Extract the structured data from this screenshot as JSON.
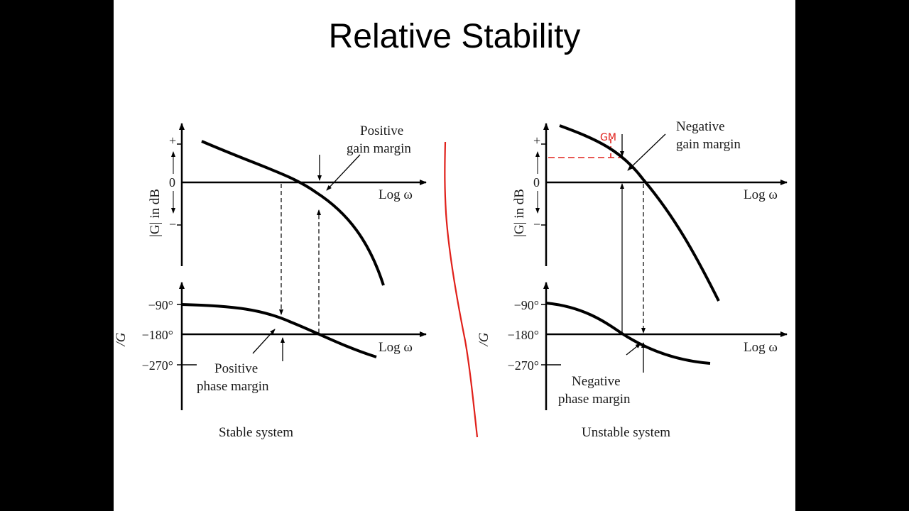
{
  "slide": {
    "title": "Relative Stability",
    "axis_labels": {
      "magnitude": "|G| in dB",
      "phase": "/G",
      "log_omega": "Log ω",
      "plus": "+",
      "zero": "0",
      "minus": "−",
      "deg_m90": "−90°",
      "deg_m180": "−180°",
      "deg_m270": "−270°"
    },
    "stable": {
      "caption": "Stable system",
      "gain_margin_line1": "Positive",
      "gain_margin_line2": "gain margin",
      "phase_margin_line1": "Positive",
      "phase_margin_line2": "phase margin"
    },
    "unstable": {
      "caption": "Unstable system",
      "gain_margin_line1": "Negative",
      "gain_margin_line2": "gain margin",
      "phase_margin_line1": "Negative",
      "phase_margin_line2": "phase margin",
      "handwritten_note": "GM"
    },
    "colors": {
      "background": "#000000",
      "slide": "#ffffff",
      "ink": "#000000",
      "annotation_red": "#e0201a"
    }
  }
}
